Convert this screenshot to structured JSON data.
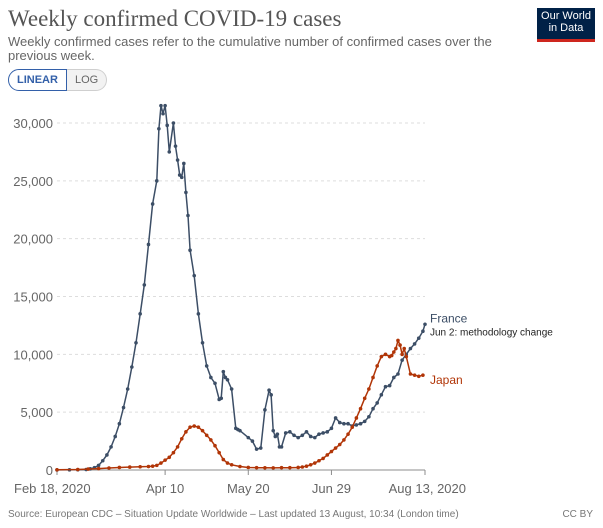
{
  "header": {
    "title": "Weekly confirmed COVID-19 cases",
    "subtitle": "Weekly confirmed cases refer to the cumulative number of confirmed cases over the previous week.",
    "logo_line1": "Our World",
    "logo_line2": "in Data"
  },
  "controls": {
    "linear_label": "LINEAR",
    "log_label": "LOG"
  },
  "footer": {
    "source": "Source: European CDC – Situation Update Worldwide – Last updated 13 August, 10:34 (London time)",
    "license": "CC BY"
  },
  "colors": {
    "france": "#3c4e66",
    "japan": "#b13507",
    "grid": "#dddddd",
    "axis_text": "#666666"
  },
  "chart_data": {
    "type": "line",
    "title": "Weekly confirmed COVID-19 cases",
    "xlabel": "",
    "ylabel": "",
    "ylim": [
      0,
      30000
    ],
    "xlim": [
      0,
      177
    ],
    "y_ticks": [
      0,
      5000,
      10000,
      15000,
      20000,
      25000,
      30000
    ],
    "y_tick_labels": [
      "0",
      "5,000",
      "10,000",
      "15,000",
      "20,000",
      "25,000",
      "30,000"
    ],
    "x_ticks": [
      0,
      52,
      92,
      132,
      177
    ],
    "x_tick_labels": [
      "Feb 18, 2020",
      "Apr 10",
      "May 20",
      "Jun 29",
      "Aug 13, 2020"
    ],
    "grid": true,
    "series": [
      {
        "name": "France",
        "annotation": "Jun 2: methodology change",
        "x": [
          0,
          6,
          10,
          14,
          16,
          18,
          20,
          22,
          24,
          26,
          28,
          30,
          32,
          34,
          36,
          38,
          40,
          42,
          44,
          46,
          48,
          49,
          50,
          51,
          52,
          53,
          54,
          56,
          57,
          58,
          59,
          60,
          61,
          62,
          63,
          64,
          66,
          68,
          70,
          72,
          74,
          76,
          78,
          79,
          80,
          81,
          82,
          84,
          86,
          87,
          88,
          92,
          94,
          96,
          98,
          100,
          102,
          103,
          104,
          105,
          106,
          107,
          108,
          110,
          112,
          114,
          116,
          118,
          120,
          122,
          124,
          126,
          128,
          130,
          132,
          134,
          136,
          138,
          140,
          142,
          144,
          146,
          148,
          150,
          152,
          154,
          156,
          158,
          160,
          162,
          164,
          166,
          168,
          170,
          172,
          174,
          176,
          177
        ],
        "y": [
          10,
          15,
          25,
          40,
          100,
          200,
          400,
          800,
          1300,
          2000,
          2900,
          4000,
          5400,
          7000,
          8900,
          11000,
          13500,
          16000,
          19500,
          23000,
          25000,
          29500,
          31500,
          30800,
          31500,
          29800,
          27500,
          30000,
          28000,
          26800,
          25500,
          25300,
          26500,
          24000,
          22000,
          19000,
          16800,
          13500,
          11000,
          9000,
          8000,
          7500,
          6100,
          6200,
          8500,
          8000,
          7800,
          7000,
          3600,
          3500,
          3400,
          2800,
          2500,
          1800,
          1900,
          5200,
          6900,
          6500,
          3400,
          2900,
          3100,
          2000,
          2000,
          3200,
          3300,
          3000,
          2800,
          3000,
          3300,
          2900,
          2800,
          3100,
          3200,
          3300,
          3600,
          4500,
          4100,
          4000,
          4000,
          3800,
          3900,
          4000,
          4200,
          4600,
          5300,
          5800,
          6500,
          7200,
          7300,
          8000,
          8300,
          9500,
          10000,
          10500,
          10900,
          11400,
          12000,
          12600
        ]
      },
      {
        "name": "Japan",
        "x": [
          0,
          10,
          15,
          20,
          25,
          30,
          35,
          40,
          44,
          46,
          48,
          50,
          52,
          54,
          56,
          58,
          60,
          62,
          64,
          66,
          68,
          70,
          72,
          74,
          76,
          78,
          80,
          82,
          84,
          88,
          92,
          96,
          100,
          104,
          108,
          112,
          116,
          118,
          120,
          122,
          124,
          126,
          128,
          130,
          132,
          134,
          136,
          138,
          140,
          142,
          144,
          146,
          148,
          150,
          152,
          154,
          156,
          158,
          160,
          161,
          162,
          163,
          164,
          165,
          166,
          167,
          168,
          170,
          172,
          174,
          176
        ],
        "y": [
          20,
          40,
          80,
          120,
          170,
          220,
          250,
          280,
          300,
          330,
          400,
          600,
          850,
          1100,
          1500,
          2000,
          2700,
          3300,
          3700,
          3800,
          3700,
          3400,
          3000,
          2600,
          2100,
          1500,
          900,
          600,
          450,
          300,
          220,
          200,
          190,
          180,
          200,
          200,
          220,
          260,
          330,
          450,
          600,
          800,
          1000,
          1300,
          1600,
          1900,
          2200,
          2600,
          3100,
          3700,
          4500,
          5300,
          6200,
          7000,
          8000,
          9000,
          9800,
          10000,
          9800,
          9900,
          10200,
          10500,
          11200,
          10800,
          10000,
          10500,
          9800,
          8300,
          8200,
          8100,
          8200
        ]
      }
    ]
  }
}
